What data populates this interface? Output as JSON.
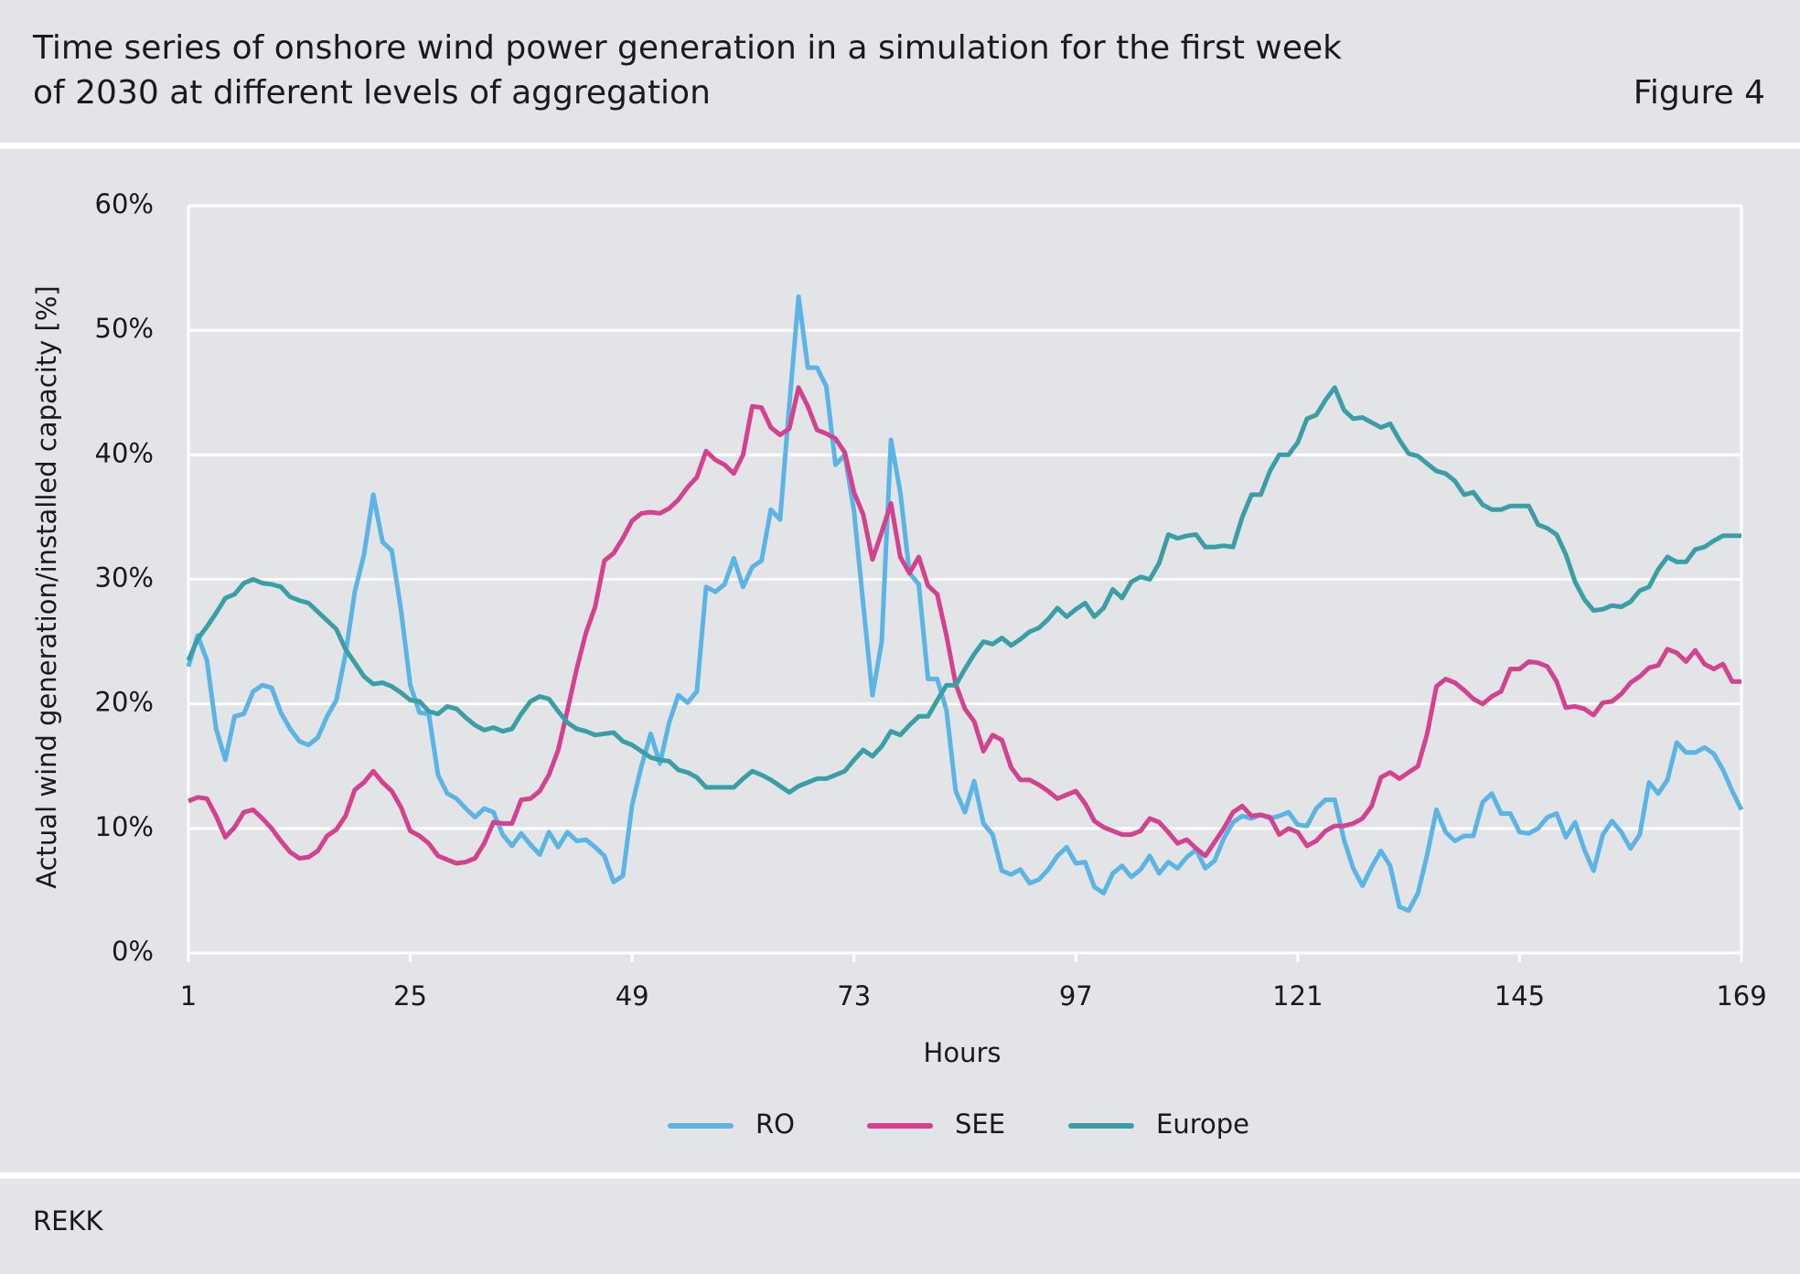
{
  "chart_data": {
    "type": "line",
    "title_lines": [
      "Time series of onshore wind power generation in a simulation for the first week",
      "of 2030 at different levels of aggregation"
    ],
    "figure_label": "Figure 4",
    "source": "REKK",
    "x_label": "Hours",
    "y_label": "Actual wind generation/installed capacity [%]",
    "xlim": [
      1,
      169
    ],
    "xticks": [
      1,
      25,
      49,
      73,
      97,
      121,
      145,
      169
    ],
    "ylim": [
      0,
      60
    ],
    "yticks": [
      {
        "value": 0,
        "label": "0%"
      },
      {
        "value": 10,
        "label": "10%"
      },
      {
        "value": 20,
        "label": "20%"
      },
      {
        "value": 30,
        "label": "30%"
      },
      {
        "value": 40,
        "label": "40%"
      },
      {
        "value": 50,
        "label": "50%"
      },
      {
        "value": 60,
        "label": "60%"
      }
    ],
    "grid": true,
    "x": [
      1,
      2,
      3,
      4,
      5,
      6,
      7,
      8,
      9,
      10,
      11,
      12,
      13,
      14,
      15,
      16,
      17,
      18,
      19,
      20,
      21,
      22,
      23,
      24,
      25,
      26,
      27,
      28,
      29,
      30,
      31,
      32,
      33,
      34,
      35,
      36,
      37,
      38,
      39,
      40,
      41,
      42,
      43,
      44,
      45,
      46,
      47,
      48,
      49,
      50,
      51,
      52,
      53,
      54,
      55,
      56,
      57,
      58,
      59,
      60,
      61,
      62,
      63,
      64,
      65,
      66,
      67,
      68,
      69,
      70,
      71,
      72,
      73,
      74,
      75,
      76,
      77,
      78,
      79,
      80,
      81,
      82,
      83,
      84,
      85,
      86,
      87,
      88,
      89,
      90,
      91,
      92,
      93,
      94,
      95,
      96,
      97,
      98,
      99,
      100,
      101,
      102,
      103,
      104,
      105,
      106,
      107,
      108,
      109,
      110,
      111,
      112,
      113,
      114,
      115,
      116,
      117,
      118,
      119,
      120,
      121,
      122,
      123,
      124,
      125,
      126,
      127,
      128,
      129,
      130,
      131,
      132,
      133,
      134,
      135,
      136,
      137,
      138,
      139,
      140,
      141,
      142,
      143,
      144,
      145,
      146,
      147,
      148,
      149,
      150,
      151,
      152,
      153,
      154,
      155,
      156,
      157,
      158,
      159,
      160,
      161,
      162,
      163,
      164,
      165,
      166,
      167,
      168,
      169
    ],
    "series": [
      {
        "name": "RO",
        "color": "#5ab4e5",
        "values": [
          23,
          25.5,
          23.5,
          18,
          15.5,
          19,
          19.2,
          21,
          21.5,
          21.3,
          19.3,
          18,
          17,
          16.7,
          17.3,
          19,
          20.3,
          24,
          29,
          32,
          36.8,
          33,
          32.3,
          27.5,
          21.5,
          19.3,
          19.2,
          14.3,
          12.8,
          12.4,
          11.6,
          10.9,
          11.6,
          11.3,
          9.5,
          8.6,
          9.6,
          8.7,
          7.9,
          9.7,
          8.5,
          9.7,
          9,
          9.1,
          8.5,
          7.8,
          5.7,
          6.2,
          11.9,
          15,
          17.6,
          15.2,
          18.5,
          20.7,
          20.1,
          21,
          29.4,
          29,
          29.6,
          31.7,
          29.4,
          31,
          31.5,
          35.6,
          34.8,
          44,
          52.7,
          47,
          47,
          45.5,
          39.2,
          40,
          35.5,
          28,
          20.7,
          25,
          41.2,
          37,
          30.5,
          29.6,
          22,
          22,
          19.5,
          13,
          11.3,
          13.8,
          10.4,
          9.5,
          6.6,
          6.3,
          6.7,
          5.6,
          5.9,
          6.7,
          7.8,
          8.5,
          7.2,
          7.3,
          5.3,
          4.8,
          6.4,
          7,
          6.1,
          6.7,
          7.8,
          6.4,
          7.3,
          6.8,
          7.7,
          8.3,
          6.8,
          7.4,
          9.2,
          10.5,
          11,
          10.8,
          11.1,
          10.8,
          11,
          11.3,
          10.3,
          10.2,
          11.6,
          12.3,
          12.3,
          9.1,
          6.8,
          5.4,
          6.9,
          8.2,
          7,
          3.7,
          3.4,
          4.8,
          7.9,
          11.5,
          9.7,
          9,
          9.4,
          9.4,
          12.1,
          12.8,
          11.2,
          11.2,
          9.7,
          9.6,
          10,
          10.9,
          11.2,
          9.3,
          10.5,
          8.3,
          6.6,
          9.5,
          10.6,
          9.7,
          8.4,
          9.5,
          13.7,
          12.8,
          13.9,
          16.9,
          16.1,
          16.1,
          16.5,
          16,
          14.7,
          13,
          11.5
        ]
      },
      {
        "name": "SEE",
        "color": "#d4418e",
        "values": [
          12.2,
          12.5,
          12.4,
          11,
          9.3,
          10.1,
          11.3,
          11.5,
          10.8,
          10,
          9,
          8.1,
          7.6,
          7.7,
          8.2,
          9.4,
          9.9,
          11,
          13.1,
          13.7,
          14.6,
          13.7,
          13,
          11.7,
          9.8,
          9.4,
          8.8,
          7.8,
          7.5,
          7.2,
          7.3,
          7.6,
          8.8,
          10.5,
          10.4,
          10.4,
          12.3,
          12.4,
          13,
          14.3,
          16.3,
          19.5,
          22.8,
          25.7,
          27.8,
          31.5,
          32.1,
          33.3,
          34.7,
          35.3,
          35.4,
          35.3,
          35.7,
          36.4,
          37.4,
          38.2,
          40.3,
          39.6,
          39.2,
          38.5,
          40,
          43.9,
          43.8,
          42.2,
          41.6,
          42.1,
          45.4,
          43.9,
          42,
          41.7,
          41.3,
          40.2,
          37,
          35.2,
          31.6,
          33.8,
          36.1,
          31.8,
          30.5,
          31.8,
          29.5,
          28.8,
          25.5,
          21.6,
          19.6,
          18.6,
          16.2,
          17.5,
          17.1,
          14.9,
          13.9,
          13.9,
          13.5,
          13,
          12.4,
          12.7,
          13,
          12,
          10.6,
          10.1,
          9.8,
          9.5,
          9.5,
          9.8,
          10.8,
          10.5,
          9.7,
          8.8,
          9.1,
          8.4,
          7.8,
          8.9,
          10,
          11.3,
          11.8,
          11,
          11.1,
          10.9,
          9.5,
          10,
          9.7,
          8.6,
          9,
          9.8,
          10.2,
          10.2,
          10.4,
          10.8,
          11.8,
          14.1,
          14.5,
          14,
          14.5,
          15,
          17.6,
          21.4,
          22,
          21.7,
          21.1,
          20.4,
          20,
          20.6,
          21,
          22.8,
          22.8,
          23.4,
          23.3,
          23,
          21.8,
          19.7,
          19.8,
          19.6,
          19.1,
          20.1,
          20.2,
          20.8,
          21.7,
          22.2,
          22.9,
          23.1,
          24.4,
          24.1,
          23.4,
          24.3,
          23.2,
          22.8,
          23.2,
          21.8,
          21.8
        ]
      },
      {
        "name": "Europe",
        "color": "#3a9fa4",
        "values": [
          23.5,
          25.2,
          26.2,
          27.3,
          28.5,
          28.8,
          29.7,
          30,
          29.7,
          29.6,
          29.4,
          28.6,
          28.3,
          28.1,
          27.4,
          26.7,
          26,
          24.4,
          23.3,
          22.2,
          21.6,
          21.7,
          21.4,
          20.9,
          20.3,
          20.2,
          19.4,
          19.2,
          19.8,
          19.6,
          18.9,
          18.3,
          17.9,
          18.1,
          17.8,
          18,
          19.2,
          20.2,
          20.6,
          20.4,
          19.4,
          18.5,
          18,
          17.8,
          17.5,
          17.6,
          17.7,
          17,
          16.7,
          16.2,
          15.7,
          15.5,
          15.4,
          14.7,
          14.5,
          14.1,
          13.3,
          13.3,
          13.3,
          13.3,
          14,
          14.6,
          14.3,
          13.9,
          13.4,
          12.9,
          13.4,
          13.7,
          14,
          14,
          14.3,
          14.6,
          15.5,
          16.3,
          15.8,
          16.6,
          17.8,
          17.5,
          18.3,
          19,
          19,
          20.3,
          21.5,
          21.5,
          22.8,
          24,
          25,
          24.8,
          25.3,
          24.7,
          25.2,
          25.8,
          26.1,
          26.8,
          27.7,
          27,
          27.6,
          28.1,
          27,
          27.7,
          29.2,
          28.5,
          29.8,
          30.2,
          30,
          31.3,
          33.6,
          33.3,
          33.5,
          33.6,
          32.6,
          32.6,
          32.7,
          32.6,
          35,
          36.8,
          36.8,
          38.7,
          40,
          40,
          41,
          42.9,
          43.2,
          44.4,
          45.4,
          43.6,
          42.9,
          43,
          42.6,
          42.2,
          42.5,
          41.2,
          40.1,
          39.9,
          39.3,
          38.7,
          38.5,
          37.9,
          36.8,
          37,
          36,
          35.6,
          35.6,
          35.9,
          35.9,
          35.9,
          34.4,
          34.1,
          33.6,
          32,
          29.8,
          28.4,
          27.5,
          27.6,
          27.9,
          27.8,
          28.2,
          29.1,
          29.4,
          30.8,
          31.8,
          31.4,
          31.4,
          32.4,
          32.6,
          33.1,
          33.5,
          33.5,
          33.5
        ]
      }
    ]
  }
}
